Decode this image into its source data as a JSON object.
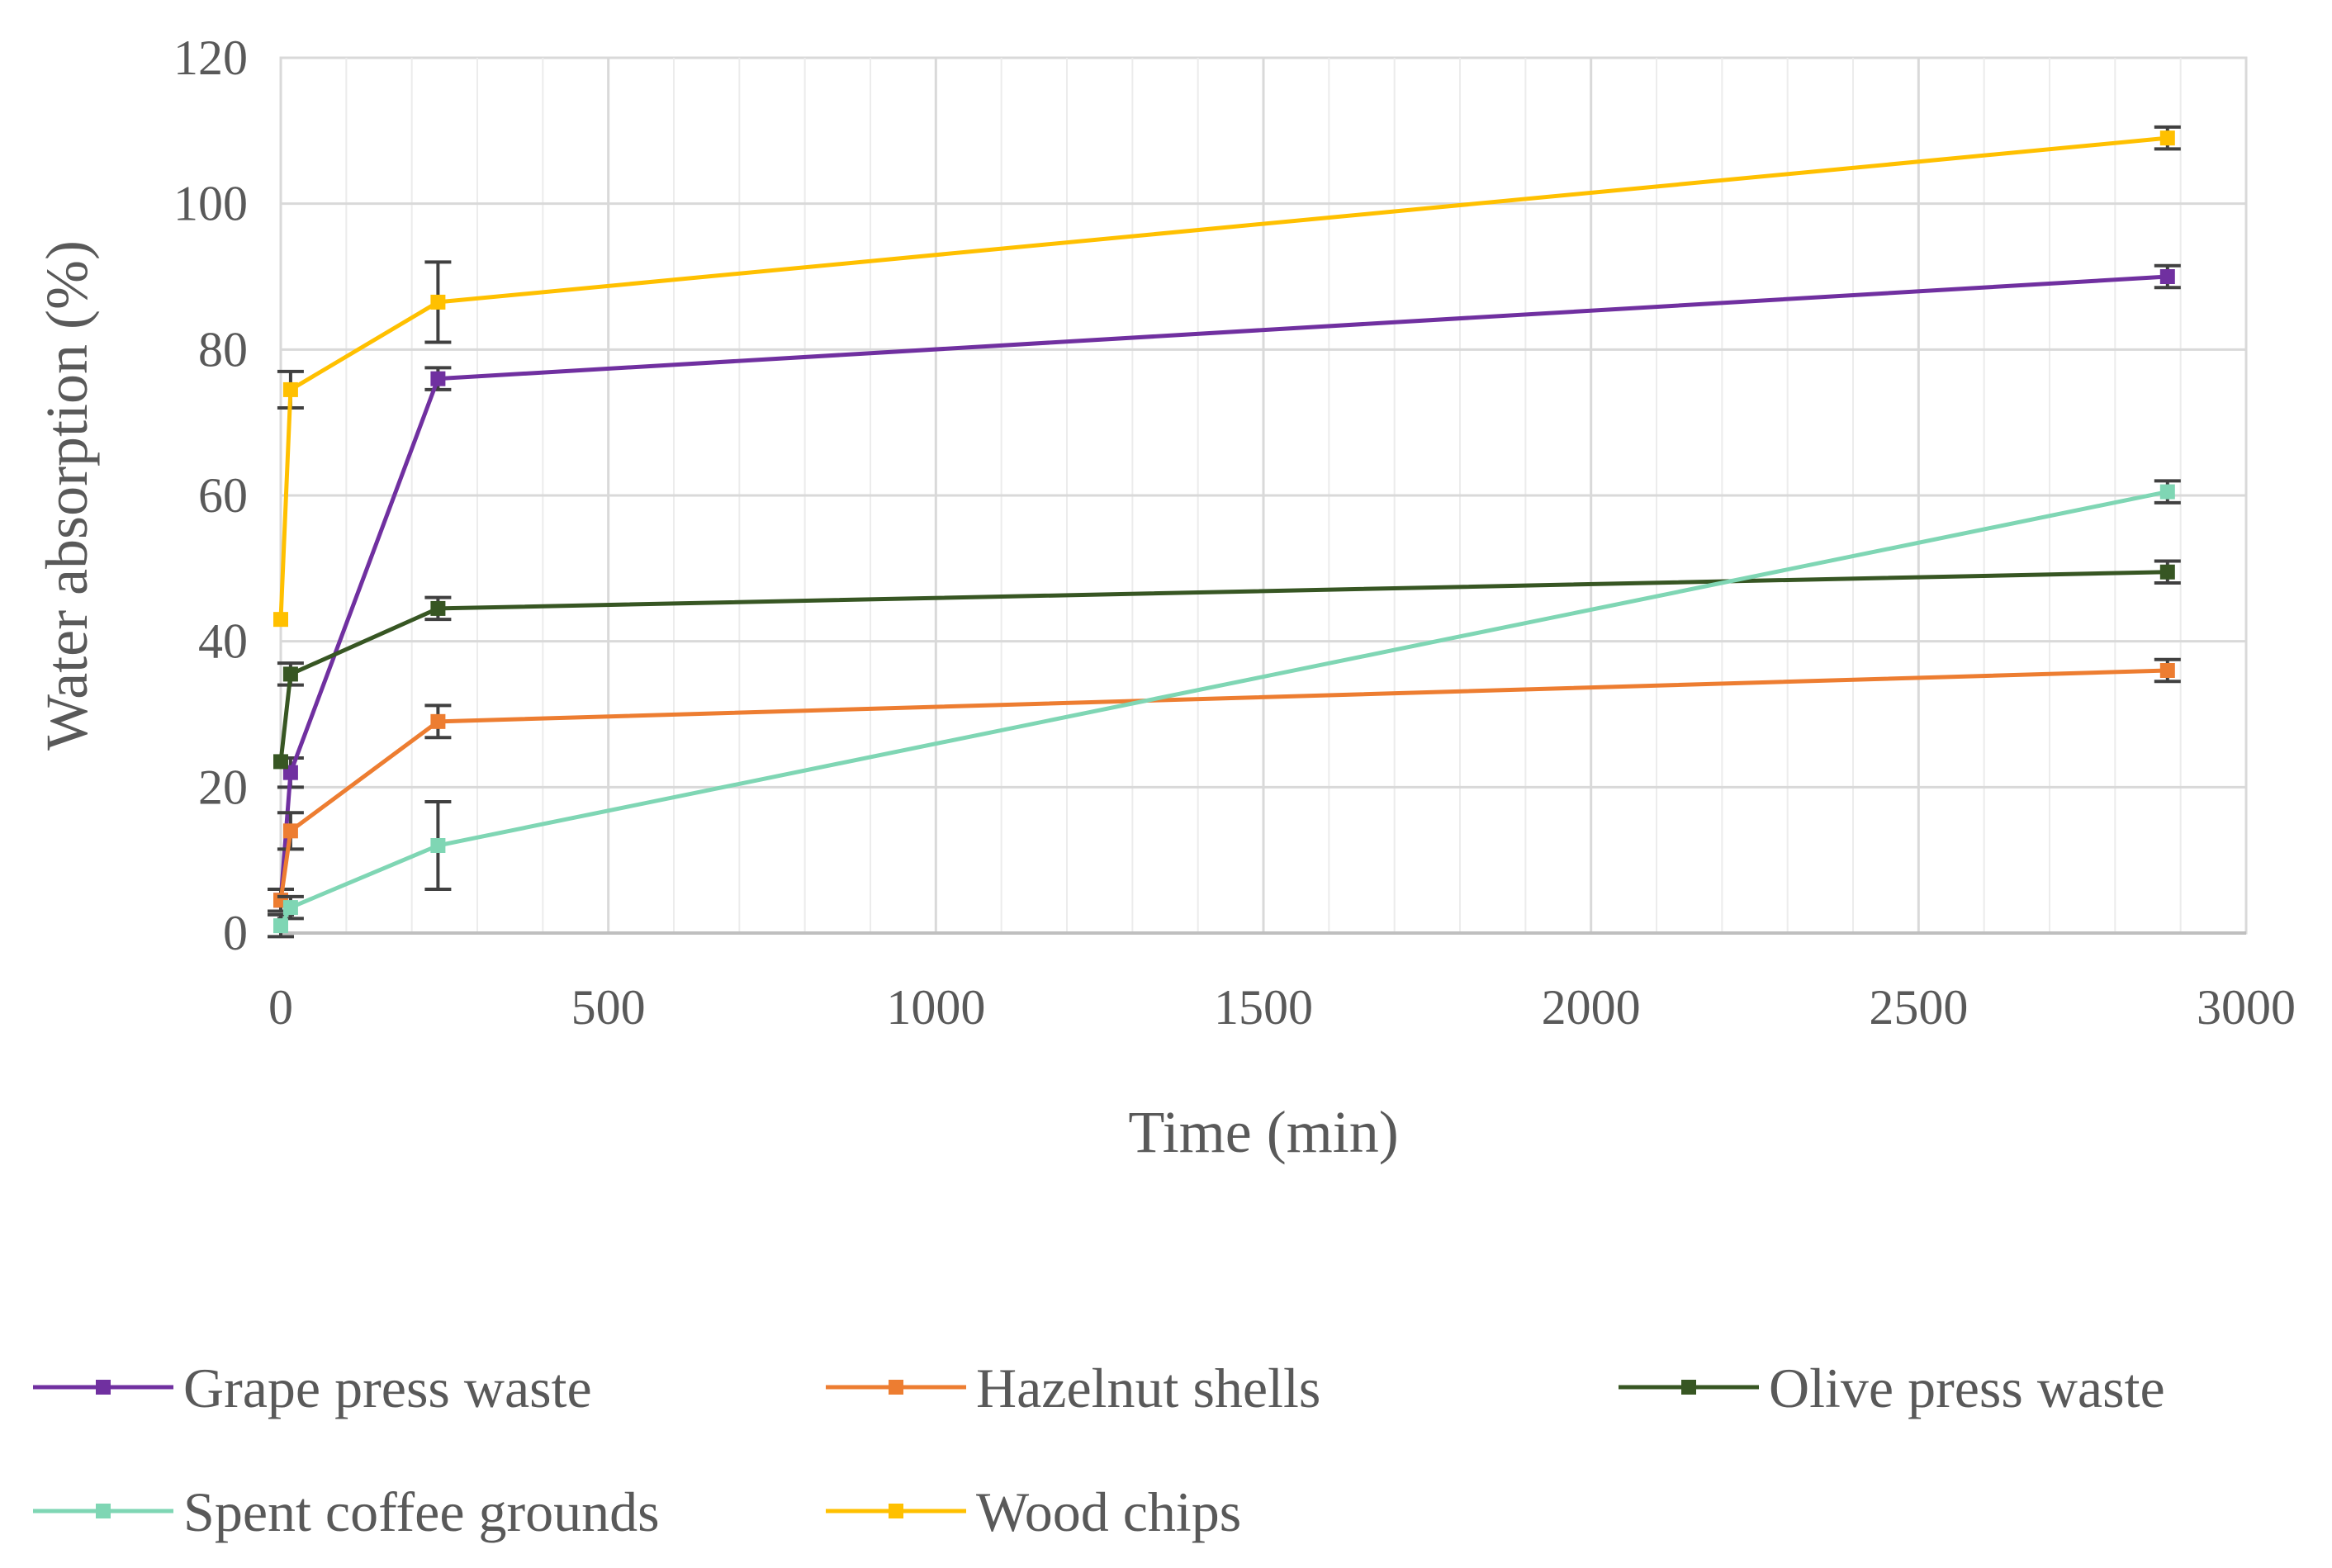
{
  "chart_data": {
    "type": "line",
    "title": "",
    "xlabel": "Time (min)",
    "ylabel": "Water absorption (%)",
    "xlim": [
      0,
      3000
    ],
    "ylim": [
      0,
      120
    ],
    "x_major_step": 500,
    "x_minor_step": 100,
    "y_major_step": 20,
    "grid": true,
    "legend_position": "bottom",
    "x_ticks": [
      "0",
      "500",
      "1000",
      "1500",
      "2000",
      "2500",
      "3000"
    ],
    "y_ticks": [
      "0",
      "20",
      "40",
      "60",
      "80",
      "100",
      "120"
    ],
    "series": [
      {
        "name": "Grape press waste",
        "color": "#7030a0",
        "x": [
          0,
          15,
          240,
          2880
        ],
        "y": [
          4.5,
          22,
          76,
          90
        ],
        "err": [
          1.5,
          2,
          1.5,
          1.5
        ]
      },
      {
        "name": "Hazelnut shells",
        "color": "#ed7d31",
        "x": [
          0,
          15,
          240,
          2880
        ],
        "y": [
          4.5,
          14,
          29,
          36
        ],
        "err": [
          1.5,
          2.5,
          2.2,
          1.5
        ]
      },
      {
        "name": "Olive press waste",
        "color": "#375623",
        "x": [
          0,
          15,
          240,
          2880
        ],
        "y": [
          23.5,
          35.5,
          44.5,
          49.5
        ],
        "err": [
          0,
          1.5,
          1.5,
          1.5
        ]
      },
      {
        "name": "Spent coffee grounds",
        "color": "#7fd6b4",
        "x": [
          0,
          15,
          240,
          2880
        ],
        "y": [
          1,
          3.5,
          12,
          60.5
        ],
        "err": [
          1.5,
          1.5,
          6,
          1.5
        ]
      },
      {
        "name": "Wood chips",
        "color": "#ffc000",
        "x": [
          0,
          15,
          240,
          2880
        ],
        "y": [
          43,
          74.5,
          86.5,
          109
        ],
        "err": [
          0,
          2.5,
          5.5,
          1.5
        ]
      }
    ]
  }
}
